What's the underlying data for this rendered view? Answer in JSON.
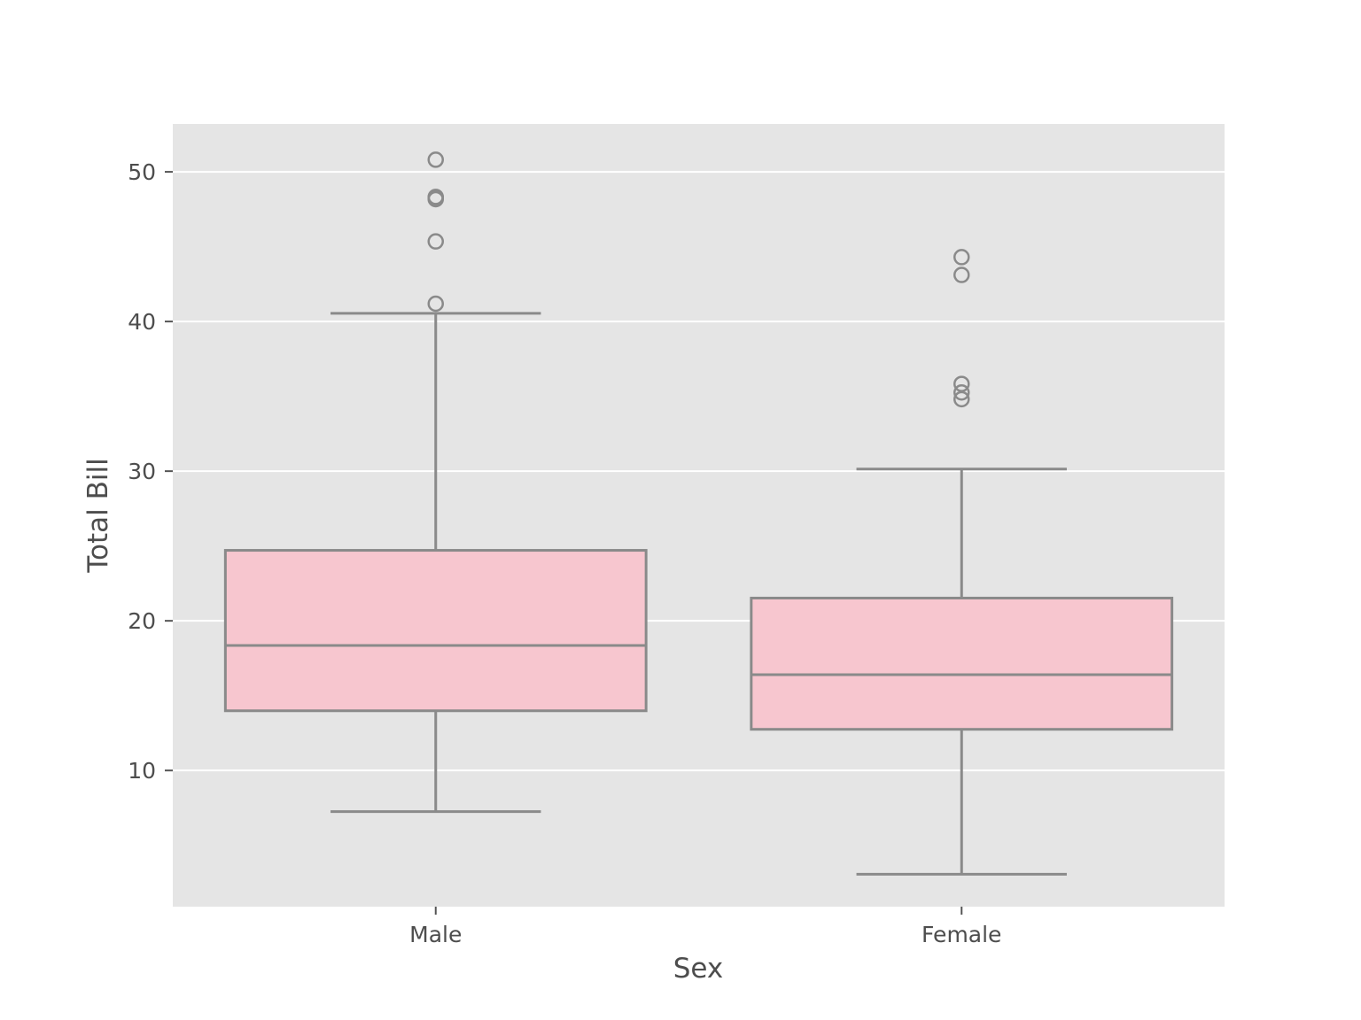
{
  "chart_data": {
    "type": "box",
    "title": "",
    "xlabel": "Sex",
    "ylabel": "Total Bill",
    "ylim": [
      0.9,
      53.2
    ],
    "yticks": [
      10,
      20,
      30,
      40,
      50
    ],
    "grid": true,
    "colors": {
      "background": "#e5e5e5",
      "grid": "#ffffff",
      "box_fill": "#f7c6cf",
      "box_edge": "#8a8a8a",
      "tick_text": "#4d4d4d"
    },
    "categories": [
      "Male",
      "Female"
    ],
    "boxes": [
      {
        "category": "Male",
        "whisker_low": 7.25,
        "q1": 13.99,
        "median": 18.35,
        "q3": 24.71,
        "whisker_high": 40.55,
        "outliers": [
          41.19,
          45.35,
          48.17,
          48.27,
          48.33,
          50.81
        ]
      },
      {
        "category": "Female",
        "whisker_low": 3.07,
        "q1": 12.75,
        "median": 16.4,
        "q3": 21.52,
        "whisker_high": 30.14,
        "outliers": [
          34.81,
          35.26,
          35.83,
          43.11,
          44.3
        ]
      }
    ]
  }
}
